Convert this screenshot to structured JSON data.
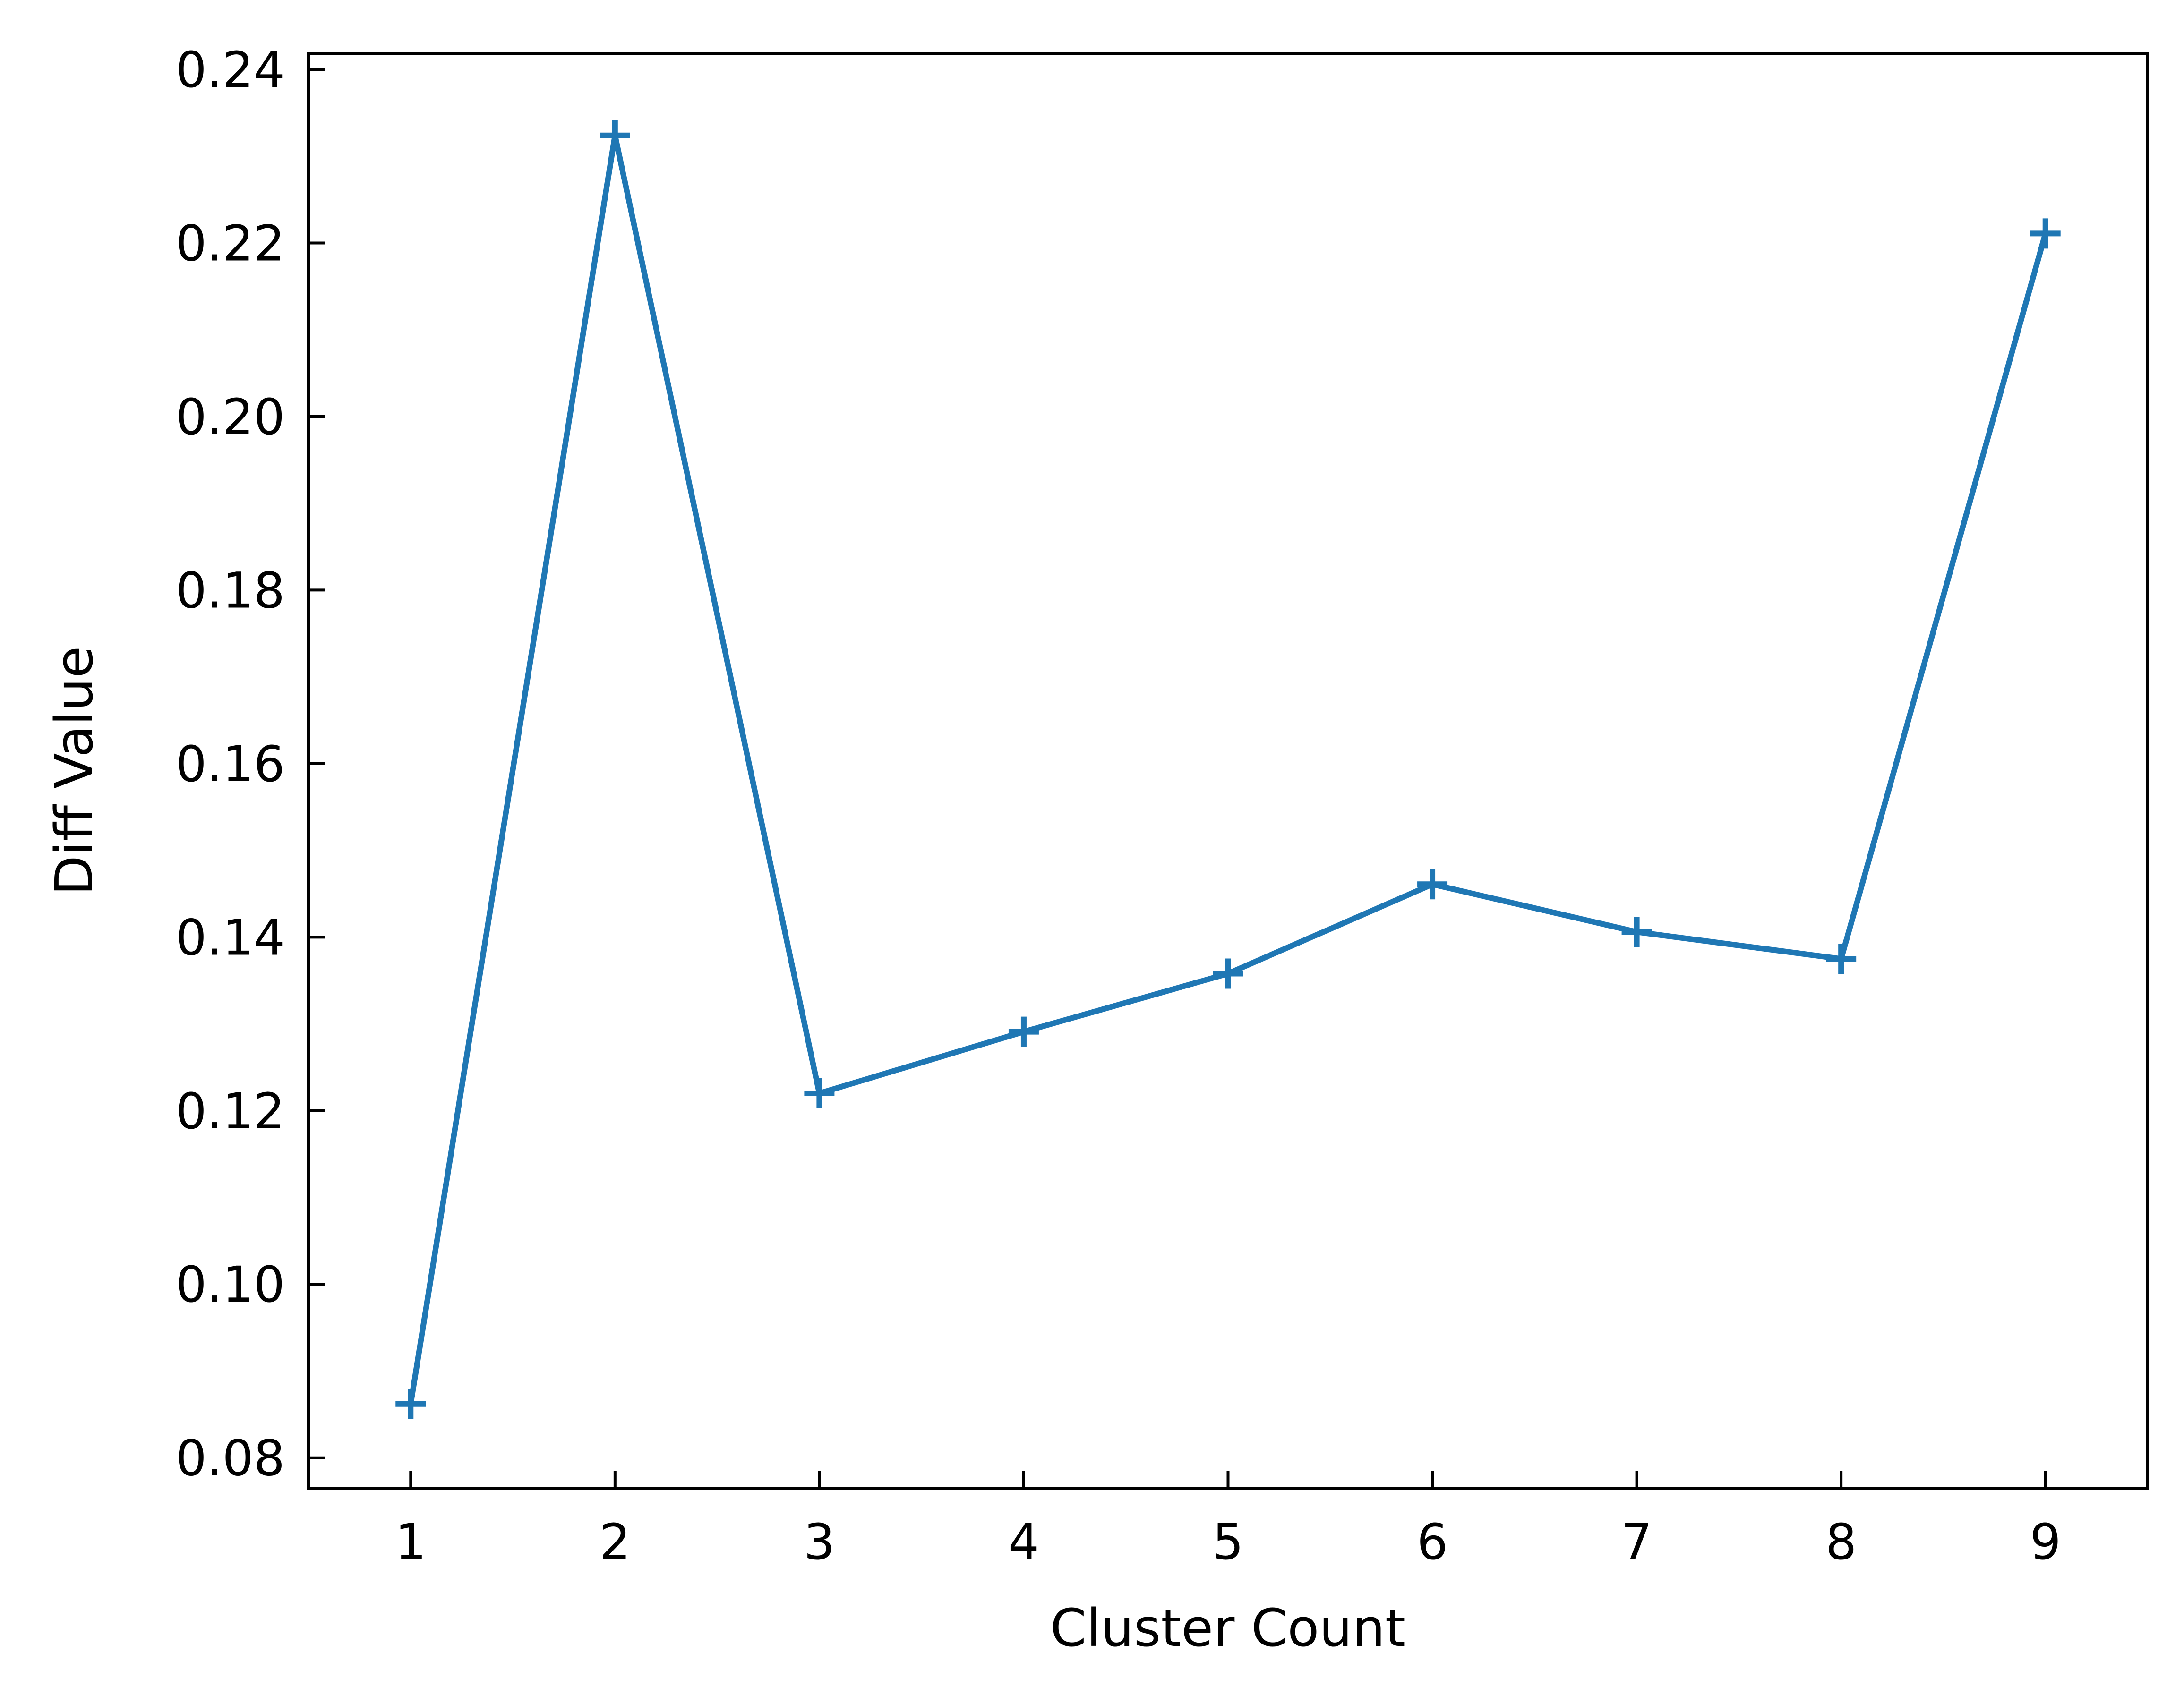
{
  "chart_data": {
    "type": "line",
    "title": "",
    "xlabel": "Cluster Count",
    "ylabel": "Diff Value",
    "x": [
      1,
      2,
      3,
      4,
      5,
      6,
      7,
      8,
      9
    ],
    "series": [
      {
        "name": "Diff Value",
        "marker": "plus",
        "color": "#1f77b4",
        "values": [
          0.0862,
          0.2324,
          0.122,
          0.1291,
          0.1358,
          0.1461,
          0.1406,
          0.1375,
          0.2211
        ]
      }
    ],
    "xlim": [
      0.5,
      9.5
    ],
    "ylim": [
      0.0765,
      0.2418
    ],
    "xticks": [
      1,
      2,
      3,
      4,
      5,
      6,
      7,
      8,
      9
    ],
    "xtick_labels": [
      "1",
      "2",
      "3",
      "4",
      "5",
      "6",
      "7",
      "8",
      "9"
    ],
    "yticks": [
      0.08,
      0.1,
      0.12,
      0.14,
      0.16,
      0.18,
      0.2,
      0.22,
      0.24
    ],
    "ytick_labels": [
      "0.08",
      "0.10",
      "0.12",
      "0.14",
      "0.16",
      "0.18",
      "0.20",
      "0.22",
      "0.24"
    ],
    "grid": false,
    "legend": "none",
    "tick_direction": "in"
  }
}
